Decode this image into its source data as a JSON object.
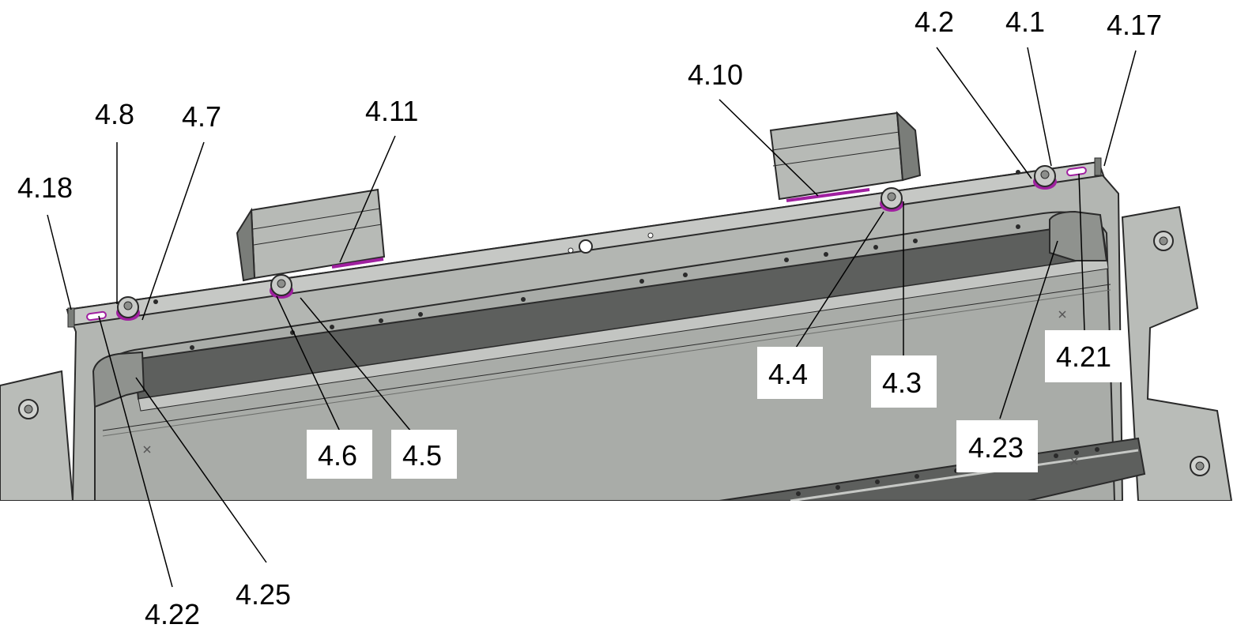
{
  "labels": {
    "l_4_18": "4.18",
    "l_4_8": "4.8",
    "l_4_7": "4.7",
    "l_4_11": "4.11",
    "l_4_10": "4.10",
    "l_4_2": "4.2",
    "l_4_1": "4.1",
    "l_4_17": "4.17",
    "l_4_4": "4.4",
    "l_4_3": "4.3",
    "l_4_21": "4.21",
    "l_4_23": "4.23",
    "l_4_6": "4.6",
    "l_4_5": "4.5",
    "l_4_22": "4.22",
    "l_4_25": "4.25"
  },
  "colors": {
    "metal_light": "#b9bcb8",
    "metal_mid": "#a7aaa6",
    "metal_dark": "#5d5f5d",
    "edge": "#2a2a2a",
    "seal": "#a020a0",
    "label_box": "#ffffff"
  }
}
